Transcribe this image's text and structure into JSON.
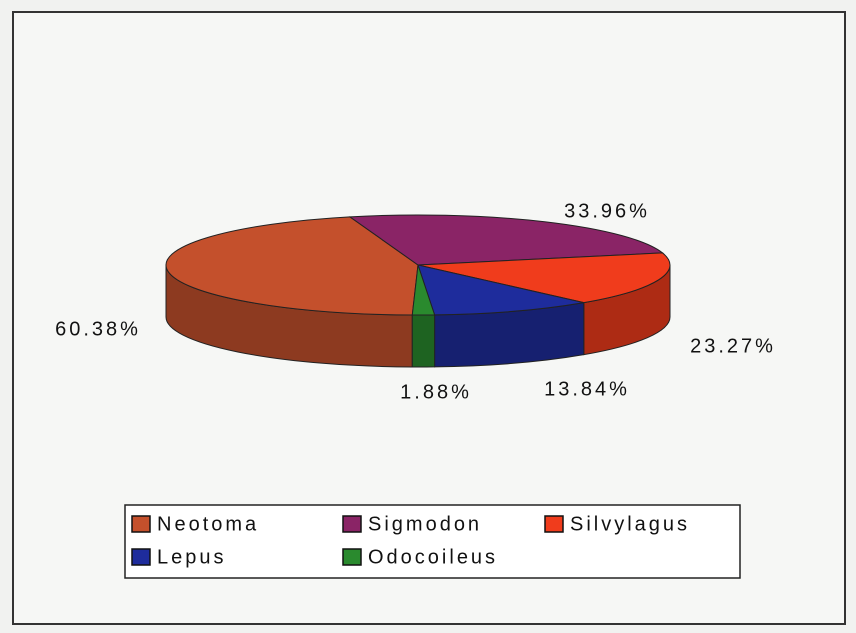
{
  "chart_data": {
    "type": "pie",
    "categories": [
      "Neotoma",
      "Sigmodon",
      "Silvylagus",
      "Lepus",
      "Odocoileus"
    ],
    "values": [
      60.38,
      33.96,
      23.27,
      13.84,
      1.88
    ],
    "value_labels": [
      "60.38%",
      "33.96%",
      "23.27%",
      "13.84%",
      "1.88%"
    ],
    "colors": [
      "#c4502c",
      "#8a2466",
      "#f03c1c",
      "#1e2c9c",
      "#2a8a2e"
    ],
    "legend": "bottom"
  }
}
